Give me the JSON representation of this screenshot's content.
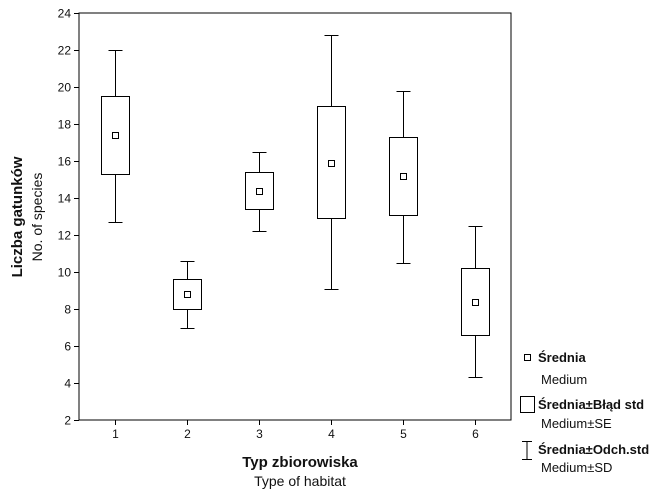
{
  "chart_data": {
    "type": "box",
    "categories": [
      "1",
      "2",
      "3",
      "4",
      "5",
      "6"
    ],
    "series": [
      {
        "name": "Średnia",
        "values": [
          17.4,
          8.8,
          14.4,
          15.9,
          15.2,
          8.4
        ]
      },
      {
        "name": "Średnia±Błąd std",
        "low": [
          15.3,
          8.0,
          13.4,
          12.9,
          13.1,
          6.6
        ],
        "high": [
          19.5,
          9.6,
          15.4,
          19.0,
          17.3,
          10.2
        ]
      },
      {
        "name": "Średnia±Odch.std",
        "low": [
          12.7,
          7.0,
          12.2,
          9.1,
          10.5,
          4.3
        ],
        "high": [
          22.0,
          10.6,
          16.5,
          22.8,
          19.8,
          12.5
        ]
      }
    ],
    "xlabel": "Typ zbiorowiska",
    "xlabel_en": "Type of habitat",
    "ylabel": "Liczba gatunków",
    "ylabel_en": "No. of species",
    "ylim": [
      2,
      24
    ],
    "yticks": [
      "2",
      "4",
      "6",
      "8",
      "10",
      "12",
      "14",
      "16",
      "18",
      "20",
      "22",
      "24"
    ],
    "grid": false,
    "legend": {
      "placement": "right",
      "items": [
        {
          "label": "Średnia",
          "sublabel": "Medium",
          "symbol": "point"
        },
        {
          "label": "Średnia±Błąd std",
          "sublabel": "Medium±SE",
          "symbol": "box"
        },
        {
          "label": "Średnia±Odch.std",
          "sublabel": "Medium±SD",
          "symbol": "whisker"
        }
      ]
    }
  }
}
